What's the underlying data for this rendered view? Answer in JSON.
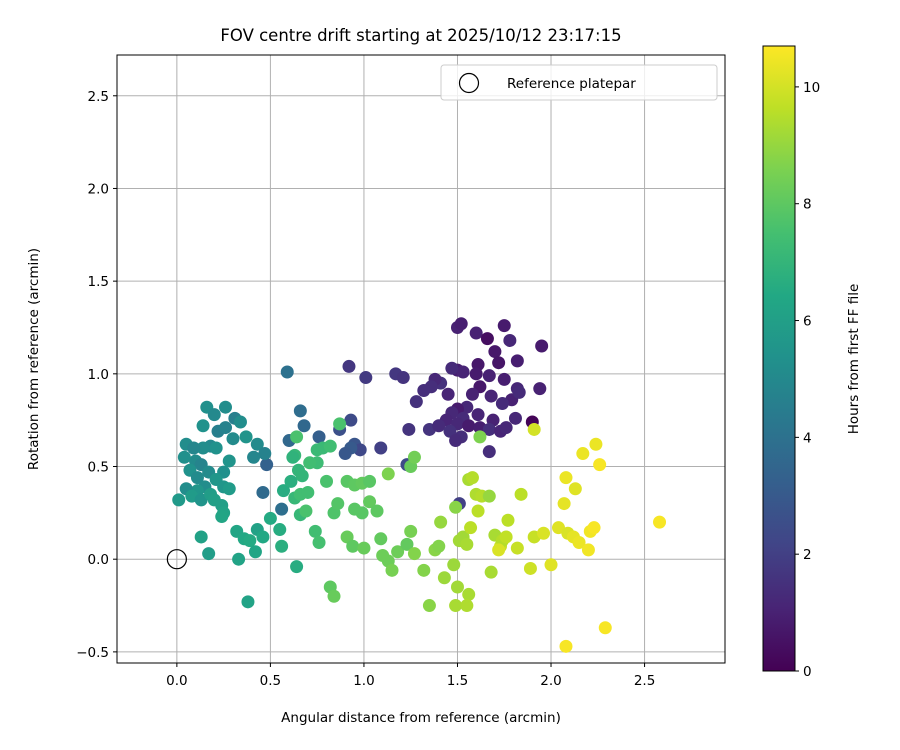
{
  "chart_data": {
    "type": "scatter",
    "title": "FOV centre drift starting at 2025/10/12 23:17:15",
    "xlabel": "Angular distance from reference (arcmin)",
    "ylabel": "Rotation from reference (arcmin)",
    "xlim": [
      -0.32,
      2.93
    ],
    "ylim": [
      -0.56,
      2.72
    ],
    "xticks": [
      "0.0",
      "0.5",
      "1.0",
      "1.5",
      "2.0",
      "2.5"
    ],
    "yticks": [
      "−0.5",
      "0.0",
      "0.5",
      "1.0",
      "1.5",
      "2.0",
      "2.5"
    ],
    "grid": true,
    "legend": {
      "position": "top-right",
      "entries": [
        "Reference platepar"
      ]
    },
    "reference_point": {
      "x": 0.0,
      "y": 0.0
    },
    "colorbar": {
      "label": "Hours from first FF file",
      "colormap": "viridis",
      "range": [
        0,
        10.7
      ],
      "ticks": [
        "0",
        "2",
        "4",
        "6",
        "8",
        "10"
      ]
    },
    "columns": [
      "x",
      "y",
      "hours"
    ],
    "points": [
      [
        1.5,
        1.25,
        1.0
      ],
      [
        1.52,
        1.27,
        0.9
      ],
      [
        1.6,
        1.22,
        1.0
      ],
      [
        1.66,
        1.19,
        0.4
      ],
      [
        1.75,
        1.26,
        0.8
      ],
      [
        1.78,
        1.18,
        1.2
      ],
      [
        1.95,
        1.15,
        0.8
      ],
      [
        1.7,
        1.12,
        0.7
      ],
      [
        1.61,
        1.05,
        0.7
      ],
      [
        1.72,
        1.06,
        0.6
      ],
      [
        1.82,
        1.07,
        0.9
      ],
      [
        1.5,
        1.02,
        0.9
      ],
      [
        1.53,
        1.01,
        1.1
      ],
      [
        1.47,
        1.03,
        1.3
      ],
      [
        1.6,
        1.0,
        0.8
      ],
      [
        1.67,
        0.99,
        1.0
      ],
      [
        1.75,
        0.97,
        0.9
      ],
      [
        1.62,
        0.93,
        0.7
      ],
      [
        1.82,
        0.92,
        1.2
      ],
      [
        1.94,
        0.92,
        1.0
      ],
      [
        1.41,
        0.95,
        1.5
      ],
      [
        1.38,
        0.97,
        1.2
      ],
      [
        1.36,
        0.93,
        1.4
      ],
      [
        1.45,
        0.89,
        1.1
      ],
      [
        1.58,
        0.89,
        1.0
      ],
      [
        1.68,
        0.88,
        1.1
      ],
      [
        1.79,
        0.86,
        1.0
      ],
      [
        1.83,
        0.9,
        1.3
      ],
      [
        1.74,
        0.84,
        1.3
      ],
      [
        1.55,
        0.82,
        1.2
      ],
      [
        1.5,
        0.81,
        0.8
      ],
      [
        1.47,
        0.79,
        1.2
      ],
      [
        1.53,
        0.76,
        1.3
      ],
      [
        1.61,
        0.78,
        1.1
      ],
      [
        1.69,
        0.75,
        1.0
      ],
      [
        1.81,
        0.76,
        1.2
      ],
      [
        1.44,
        0.75,
        1.1
      ],
      [
        1.5,
        0.73,
        1.2
      ],
      [
        1.56,
        0.72,
        0.8
      ],
      [
        1.62,
        0.71,
        0.9
      ],
      [
        1.67,
        0.7,
        1.4
      ],
      [
        1.73,
        0.69,
        1.1
      ],
      [
        1.76,
        0.71,
        1.2
      ],
      [
        1.35,
        0.7,
        1.6
      ],
      [
        1.4,
        0.72,
        1.3
      ],
      [
        1.46,
        0.69,
        1.5
      ],
      [
        1.52,
        0.66,
        1.4
      ],
      [
        1.49,
        0.64,
        1.3
      ],
      [
        1.67,
        0.58,
        1.4
      ],
      [
        1.24,
        0.7,
        1.6
      ],
      [
        1.28,
        0.85,
        1.5
      ],
      [
        1.32,
        0.91,
        1.4
      ],
      [
        1.17,
        1.0,
        1.7
      ],
      [
        1.21,
        0.98,
        1.6
      ],
      [
        1.01,
        0.98,
        1.8
      ],
      [
        0.92,
        1.04,
        1.7
      ],
      [
        1.9,
        0.74,
        0.1
      ],
      [
        1.51,
        0.3,
        2.0
      ],
      [
        1.09,
        0.6,
        2.0
      ],
      [
        0.93,
        0.75,
        2.4
      ],
      [
        0.87,
        0.7,
        2.6
      ],
      [
        0.95,
        0.62,
        2.8
      ],
      [
        0.98,
        0.59,
        2.3
      ],
      [
        0.93,
        0.6,
        3.0
      ],
      [
        0.9,
        0.57,
        2.9
      ],
      [
        0.66,
        0.8,
        3.8
      ],
      [
        0.68,
        0.72,
        3.6
      ],
      [
        0.76,
        0.66,
        3.2
      ],
      [
        0.59,
        1.01,
        4.0
      ],
      [
        0.6,
        0.64,
        3.6
      ],
      [
        0.48,
        0.51,
        3.3
      ],
      [
        0.46,
        0.36,
        3.7
      ],
      [
        0.56,
        0.27,
        3.9
      ],
      [
        1.23,
        0.51,
        2.4
      ],
      [
        0.22,
        0.69,
        4.6
      ],
      [
        0.26,
        0.71,
        4.7
      ],
      [
        0.3,
        0.65,
        5.1
      ],
      [
        0.37,
        0.66,
        5.5
      ],
      [
        0.31,
        0.76,
        4.6
      ],
      [
        0.34,
        0.74,
        5.2
      ],
      [
        0.43,
        0.62,
        5.1
      ],
      [
        0.47,
        0.57,
        4.7
      ],
      [
        0.41,
        0.55,
        4.9
      ],
      [
        0.16,
        0.82,
        5.3
      ],
      [
        0.2,
        0.78,
        5.0
      ],
      [
        0.26,
        0.82,
        5.2
      ],
      [
        0.14,
        0.72,
        5.4
      ],
      [
        0.18,
        0.61,
        5.0
      ],
      [
        0.14,
        0.6,
        5.2
      ],
      [
        0.05,
        0.62,
        5.2
      ],
      [
        0.09,
        0.6,
        4.9
      ],
      [
        0.1,
        0.53,
        5.1
      ],
      [
        0.13,
        0.51,
        4.8
      ],
      [
        0.17,
        0.47,
        5.1
      ],
      [
        0.25,
        0.47,
        5.3
      ],
      [
        0.28,
        0.53,
        5.5
      ],
      [
        0.21,
        0.6,
        5.4
      ],
      [
        0.04,
        0.55,
        5.3
      ],
      [
        0.07,
        0.48,
        5.4
      ],
      [
        0.11,
        0.44,
        5.1
      ],
      [
        0.21,
        0.43,
        5.6
      ],
      [
        0.25,
        0.39,
        5.6
      ],
      [
        0.15,
        0.39,
        5.2
      ],
      [
        0.11,
        0.37,
        5.6
      ],
      [
        0.05,
        0.38,
        5.2
      ],
      [
        0.08,
        0.34,
        5.8
      ],
      [
        0.13,
        0.32,
        5.5
      ],
      [
        0.18,
        0.35,
        5.9
      ],
      [
        0.01,
        0.32,
        5.7
      ],
      [
        0.2,
        0.32,
        6.0
      ],
      [
        0.24,
        0.29,
        6.0
      ],
      [
        0.28,
        0.38,
        5.8
      ],
      [
        0.25,
        0.25,
        6.2
      ],
      [
        0.24,
        0.23,
        6.3
      ],
      [
        0.32,
        0.15,
        6.3
      ],
      [
        0.36,
        0.11,
        6.4
      ],
      [
        0.39,
        0.1,
        6.5
      ],
      [
        0.43,
        0.16,
        6.1
      ],
      [
        0.5,
        0.22,
        6.5
      ],
      [
        0.46,
        0.12,
        6.4
      ],
      [
        0.42,
        0.04,
        6.3
      ],
      [
        0.33,
        0.0,
        6.2
      ],
      [
        0.17,
        0.03,
        5.9
      ],
      [
        0.13,
        0.12,
        6.1
      ],
      [
        0.38,
        -0.23,
        6.2
      ],
      [
        0.64,
        -0.04,
        6.6
      ],
      [
        0.56,
        0.07,
        6.7
      ],
      [
        0.55,
        0.16,
        6.6
      ],
      [
        0.57,
        0.37,
        6.6
      ],
      [
        0.61,
        0.42,
        6.7
      ],
      [
        0.63,
        0.56,
        7.1
      ],
      [
        0.65,
        0.48,
        7.0
      ],
      [
        0.62,
        0.55,
        6.9
      ],
      [
        0.67,
        0.45,
        7.0
      ],
      [
        0.75,
        0.52,
        7.3
      ],
      [
        0.71,
        0.52,
        7.4
      ],
      [
        0.63,
        0.33,
        7.1
      ],
      [
        0.66,
        0.35,
        7.4
      ],
      [
        0.7,
        0.36,
        7.4
      ],
      [
        0.64,
        0.66,
        7.6
      ],
      [
        0.75,
        0.59,
        7.2
      ],
      [
        0.78,
        0.6,
        7.2
      ],
      [
        0.82,
        0.61,
        7.4
      ],
      [
        0.66,
        0.24,
        7.1
      ],
      [
        0.69,
        0.26,
        7.6
      ],
      [
        0.74,
        0.15,
        7.4
      ],
      [
        0.76,
        0.09,
        7.5
      ],
      [
        0.8,
        0.42,
        7.6
      ],
      [
        0.84,
        0.25,
        7.7
      ],
      [
        0.86,
        0.3,
        7.8
      ],
      [
        0.87,
        0.73,
        7.6
      ],
      [
        0.91,
        0.42,
        7.9
      ],
      [
        0.95,
        0.4,
        8.0
      ],
      [
        0.99,
        0.41,
        8.1
      ],
      [
        1.03,
        0.42,
        7.9
      ],
      [
        0.95,
        0.27,
        7.9
      ],
      [
        0.99,
        0.25,
        7.9
      ],
      [
        1.03,
        0.31,
        8.1
      ],
      [
        1.07,
        0.26,
        8.0
      ],
      [
        0.91,
        0.12,
        8.2
      ],
      [
        0.94,
        0.07,
        8.0
      ],
      [
        1.0,
        0.06,
        8.2
      ],
      [
        1.09,
        0.11,
        8.1
      ],
      [
        1.1,
        0.02,
        8.3
      ],
      [
        1.13,
        -0.01,
        8.3
      ],
      [
        1.15,
        -0.06,
        8.5
      ],
      [
        0.82,
        -0.15,
        8.0
      ],
      [
        0.84,
        -0.2,
        8.2
      ],
      [
        1.18,
        0.04,
        8.3
      ],
      [
        1.23,
        0.08,
        8.1
      ],
      [
        1.25,
        0.15,
        8.5
      ],
      [
        1.27,
        0.03,
        8.7
      ],
      [
        1.32,
        -0.06,
        8.7
      ],
      [
        1.13,
        0.46,
        8.6
      ],
      [
        1.25,
        0.5,
        8.2
      ],
      [
        1.27,
        0.55,
        8.4
      ],
      [
        1.35,
        -0.25,
        8.8
      ],
      [
        1.38,
        0.05,
        8.8
      ],
      [
        1.4,
        0.07,
        8.7
      ],
      [
        1.41,
        0.2,
        9.0
      ],
      [
        1.43,
        -0.1,
        9.1
      ],
      [
        1.48,
        -0.03,
        9.1
      ],
      [
        1.49,
        0.28,
        8.8
      ],
      [
        1.51,
        0.1,
        9.2
      ],
      [
        1.53,
        0.12,
        9.2
      ],
      [
        1.55,
        0.08,
        9.3
      ],
      [
        1.5,
        -0.15,
        9.2
      ],
      [
        1.49,
        -0.25,
        9.3
      ],
      [
        1.56,
        -0.19,
        9.3
      ],
      [
        1.55,
        -0.25,
        9.4
      ],
      [
        1.57,
        0.17,
        9.6
      ],
      [
        1.56,
        0.43,
        9.3
      ],
      [
        1.58,
        0.44,
        9.5
      ],
      [
        1.6,
        0.35,
        9.4
      ],
      [
        1.61,
        0.26,
        9.6
      ],
      [
        1.63,
        0.34,
        9.5
      ],
      [
        1.62,
        0.66,
        8.6
      ],
      [
        1.67,
        0.34,
        9.0
      ],
      [
        1.68,
        -0.07,
        9.3
      ],
      [
        1.7,
        0.13,
        9.3
      ],
      [
        1.73,
        0.07,
        9.8
      ],
      [
        1.74,
        0.1,
        9.5
      ],
      [
        1.77,
        0.21,
        9.6
      ],
      [
        1.76,
        0.12,
        9.7
      ],
      [
        1.72,
        0.05,
        10.1
      ],
      [
        1.82,
        0.06,
        9.8
      ],
      [
        1.84,
        0.35,
        9.6
      ],
      [
        1.89,
        -0.05,
        9.9
      ],
      [
        1.91,
        0.12,
        9.8
      ],
      [
        1.91,
        0.7,
        10.0
      ],
      [
        1.96,
        0.14,
        10.1
      ],
      [
        2.0,
        -0.03,
        10.2
      ],
      [
        2.04,
        0.17,
        10.2
      ],
      [
        2.07,
        0.3,
        10.3
      ],
      [
        2.09,
        0.14,
        10.1
      ],
      [
        2.12,
        0.12,
        10.3
      ],
      [
        2.13,
        0.38,
        10.2
      ],
      [
        2.08,
        0.44,
        10.4
      ],
      [
        2.15,
        0.09,
        10.4
      ],
      [
        2.17,
        0.57,
        10.4
      ],
      [
        2.2,
        0.05,
        10.5
      ],
      [
        2.21,
        0.15,
        10.5
      ],
      [
        2.23,
        0.17,
        10.6
      ],
      [
        2.24,
        0.62,
        10.4
      ],
      [
        2.26,
        0.51,
        10.6
      ],
      [
        2.08,
        -0.47,
        10.6
      ],
      [
        2.29,
        -0.37,
        10.6
      ],
      [
        2.58,
        0.2,
        10.6
      ]
    ]
  }
}
